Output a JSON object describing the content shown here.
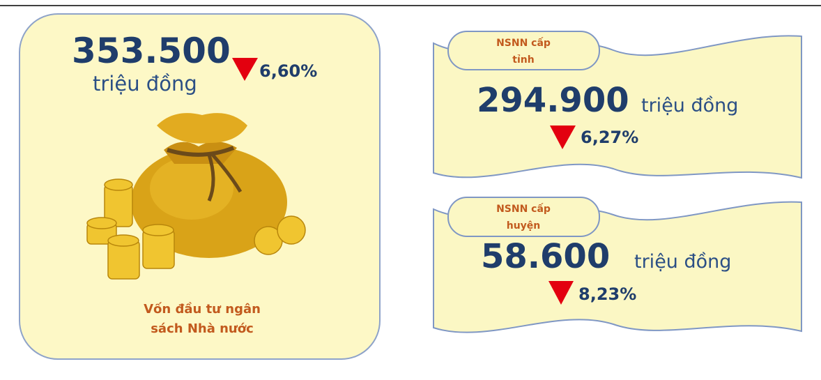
{
  "main": {
    "value": "353.500",
    "unit": "triệu đồng",
    "change": "6,60%",
    "label_lines": [
      "Vốn đầu tư ngân",
      "sách Nhà nước"
    ]
  },
  "cards": [
    {
      "title_lines": [
        "NSNN cấp",
        "tỉnh"
      ],
      "value": "294.900",
      "unit": "triệu đồng",
      "change": "6,27%"
    },
    {
      "title_lines": [
        "NSNN cấp",
        "huyện"
      ],
      "value": "58.600",
      "unit": "triệu đồng",
      "change": "8,23%"
    }
  ]
}
